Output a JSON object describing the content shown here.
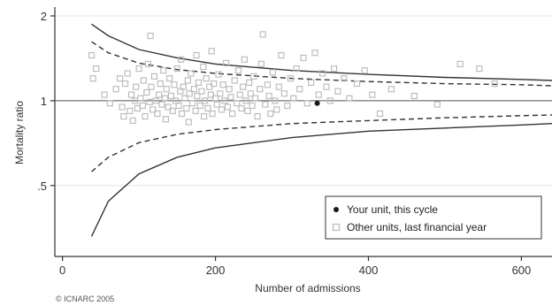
{
  "chart_data": {
    "type": "scatter",
    "xlabel": "Number of admissions",
    "ylabel": "Mortality ratio",
    "xlim": [
      -10,
      640
    ],
    "ylim": [
      0.28,
      2.15
    ],
    "y_scale": "log",
    "grid": true,
    "x_ticks": [
      0,
      200,
      400,
      600
    ],
    "x_tick_labels": [
      "0",
      "200",
      "400",
      "600"
    ],
    "y_ticks": [
      0.5,
      1,
      2
    ],
    "y_tick_labels": [
      ".5",
      "1",
      "2"
    ],
    "reference_line": 1,
    "legend": {
      "position": "bottom-right",
      "entries": [
        {
          "label": "Your unit, this cycle",
          "marker": "filled-dot",
          "color": "#1a1a1a"
        },
        {
          "label": "Other units, last financial year",
          "marker": "hollow-square",
          "color": "#bdbdbd"
        }
      ]
    },
    "series": [
      {
        "name": "Your unit, this cycle",
        "color": "#1a1a1a",
        "points": [
          [
            333,
            0.98
          ]
        ]
      },
      {
        "name": "Other units, last financial year",
        "color": "#bdbdbd",
        "points": [
          [
            38,
            1.45
          ],
          [
            40,
            1.2
          ],
          [
            44,
            1.3
          ],
          [
            55,
            1.05
          ],
          [
            62,
            0.98
          ],
          [
            70,
            1.1
          ],
          [
            75,
            1.2
          ],
          [
            78,
            0.95
          ],
          [
            80,
            0.88
          ],
          [
            82,
            1.15
          ],
          [
            85,
            1.25
          ],
          [
            88,
            0.92
          ],
          [
            90,
            1.05
          ],
          [
            92,
            0.85
          ],
          [
            95,
            1.0
          ],
          [
            96,
            1.12
          ],
          [
            98,
            0.94
          ],
          [
            100,
            1.3
          ],
          [
            102,
            1.02
          ],
          [
            105,
            0.96
          ],
          [
            106,
            1.18
          ],
          [
            108,
            0.88
          ],
          [
            110,
            1.07
          ],
          [
            112,
            1.35
          ],
          [
            114,
            0.99
          ],
          [
            115,
            1.7
          ],
          [
            116,
            1.12
          ],
          [
            118,
            0.93
          ],
          [
            120,
            1.22
          ],
          [
            122,
            1.0
          ],
          [
            124,
            0.9
          ],
          [
            126,
            1.05
          ],
          [
            128,
            1.15
          ],
          [
            130,
            0.97
          ],
          [
            132,
            1.28
          ],
          [
            134,
            1.02
          ],
          [
            135,
            0.86
          ],
          [
            136,
            1.1
          ],
          [
            138,
            0.95
          ],
          [
            140,
            1.2
          ],
          [
            142,
            1.04
          ],
          [
            144,
            0.92
          ],
          [
            146,
            1.14
          ],
          [
            148,
            1.0
          ],
          [
            150,
            1.3
          ],
          [
            152,
            0.96
          ],
          [
            154,
            1.08
          ],
          [
            155,
            1.4
          ],
          [
            156,
            0.9
          ],
          [
            158,
            1.12
          ],
          [
            160,
            1.02
          ],
          [
            162,
            0.94
          ],
          [
            164,
            1.18
          ],
          [
            165,
            0.84
          ],
          [
            166,
            1.06
          ],
          [
            168,
            1.25
          ],
          [
            170,
            0.98
          ],
          [
            172,
            1.1
          ],
          [
            174,
            0.92
          ],
          [
            175,
            1.45
          ],
          [
            176,
            1.04
          ],
          [
            178,
            1.16
          ],
          [
            180,
            0.96
          ],
          [
            182,
            1.08
          ],
          [
            184,
            1.32
          ],
          [
            185,
            0.88
          ],
          [
            186,
            1.0
          ],
          [
            188,
            1.2
          ],
          [
            190,
            0.94
          ],
          [
            192,
            1.12
          ],
          [
            194,
            1.05
          ],
          [
            195,
            1.5
          ],
          [
            196,
            0.9
          ],
          [
            198,
            1.15
          ],
          [
            200,
            1.02
          ],
          [
            202,
            0.97
          ],
          [
            204,
            1.24
          ],
          [
            206,
            1.06
          ],
          [
            208,
            0.93
          ],
          [
            210,
            1.14
          ],
          [
            212,
            1.0
          ],
          [
            214,
            1.36
          ],
          [
            216,
            0.95
          ],
          [
            218,
            1.1
          ],
          [
            220,
            1.03
          ],
          [
            222,
            0.9
          ],
          [
            225,
            1.18
          ],
          [
            228,
            0.98
          ],
          [
            230,
            1.28
          ],
          [
            232,
            1.05
          ],
          [
            234,
            0.94
          ],
          [
            236,
            1.12
          ],
          [
            238,
            1.4
          ],
          [
            240,
            1.0
          ],
          [
            242,
            0.92
          ],
          [
            244,
            1.16
          ],
          [
            246,
            1.06
          ],
          [
            248,
            0.96
          ],
          [
            250,
            1.22
          ],
          [
            252,
            1.02
          ],
          [
            255,
            0.88
          ],
          [
            258,
            1.1
          ],
          [
            260,
            1.35
          ],
          [
            262,
            1.72
          ],
          [
            265,
            0.97
          ],
          [
            268,
            1.14
          ],
          [
            270,
            1.04
          ],
          [
            272,
            0.9
          ],
          [
            275,
            1.26
          ],
          [
            278,
            1.0
          ],
          [
            280,
            0.93
          ],
          [
            283,
            1.12
          ],
          [
            286,
            1.45
          ],
          [
            290,
            1.06
          ],
          [
            294,
            0.96
          ],
          [
            298,
            1.2
          ],
          [
            302,
            1.02
          ],
          [
            306,
            1.3
          ],
          [
            310,
            1.1
          ],
          [
            315,
            1.42
          ],
          [
            320,
            0.98
          ],
          [
            325,
            1.16
          ],
          [
            330,
            1.48
          ],
          [
            335,
            1.05
          ],
          [
            340,
            1.25
          ],
          [
            345,
            1.12
          ],
          [
            350,
            1.0
          ],
          [
            355,
            1.3
          ],
          [
            360,
            1.08
          ],
          [
            368,
            1.2
          ],
          [
            375,
            1.02
          ],
          [
            385,
            1.15
          ],
          [
            395,
            1.28
          ],
          [
            405,
            1.05
          ],
          [
            415,
            0.9
          ],
          [
            430,
            1.1
          ],
          [
            460,
            1.04
          ],
          [
            490,
            0.97
          ],
          [
            520,
            1.35
          ],
          [
            545,
            1.3
          ],
          [
            565,
            1.15
          ]
        ]
      }
    ],
    "control_limits": [
      {
        "name": "inner-upper",
        "style": "dashed",
        "points": [
          [
            38,
            1.62
          ],
          [
            60,
            1.48
          ],
          [
            100,
            1.36
          ],
          [
            150,
            1.29
          ],
          [
            200,
            1.25
          ],
          [
            300,
            1.2
          ],
          [
            400,
            1.17
          ],
          [
            500,
            1.15
          ],
          [
            600,
            1.14
          ],
          [
            640,
            1.13
          ]
        ]
      },
      {
        "name": "inner-lower",
        "style": "dashed",
        "points": [
          [
            38,
            0.56
          ],
          [
            60,
            0.63
          ],
          [
            100,
            0.71
          ],
          [
            150,
            0.76
          ],
          [
            200,
            0.79
          ],
          [
            300,
            0.83
          ],
          [
            400,
            0.85
          ],
          [
            500,
            0.87
          ],
          [
            600,
            0.885
          ],
          [
            640,
            0.89
          ]
        ]
      },
      {
        "name": "outer-upper",
        "style": "solid",
        "points": [
          [
            38,
            1.87
          ],
          [
            60,
            1.7
          ],
          [
            100,
            1.52
          ],
          [
            150,
            1.42
          ],
          [
            200,
            1.35
          ],
          [
            300,
            1.28
          ],
          [
            400,
            1.24
          ],
          [
            500,
            1.21
          ],
          [
            600,
            1.19
          ],
          [
            640,
            1.18
          ]
        ]
      },
      {
        "name": "outer-lower",
        "style": "solid",
        "points": [
          [
            38,
            0.33
          ],
          [
            60,
            0.44
          ],
          [
            100,
            0.55
          ],
          [
            150,
            0.63
          ],
          [
            200,
            0.68
          ],
          [
            300,
            0.74
          ],
          [
            400,
            0.78
          ],
          [
            500,
            0.8
          ],
          [
            600,
            0.82
          ],
          [
            640,
            0.83
          ]
        ]
      }
    ]
  },
  "copyright": "© ICNARC 2005"
}
